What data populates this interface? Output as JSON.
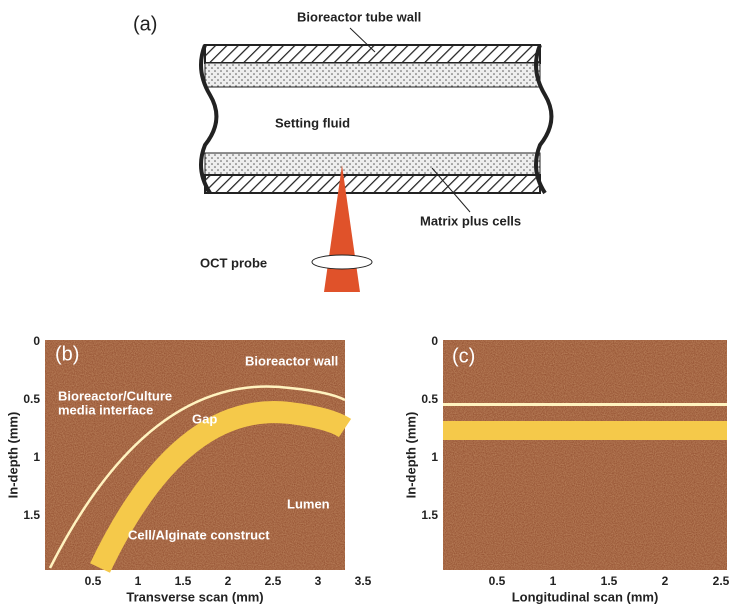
{
  "panel_a": {
    "label": "(a)",
    "tube_wall": "Bioreactor tube wall",
    "fluid": "Setting fluid",
    "matrix": "Matrix plus cells",
    "probe": "OCT probe"
  },
  "panel_b": {
    "label": "(b)",
    "x_axis": "Transverse scan (mm)",
    "y_axis": "In-depth (mm)",
    "xticks": [
      "0.5",
      "1",
      "1.5",
      "2",
      "2.5",
      "3",
      "3.5"
    ],
    "yticks": [
      "0",
      "0.5",
      "1",
      "1.5"
    ],
    "annotations": [
      "Bioreactor wall",
      "Bioreactor/Culture",
      "media interface",
      "Gap",
      "Lumen",
      "Cell/Alginate construct"
    ]
  },
  "panel_c": {
    "label": "(c)",
    "x_axis": "Longitudinal scan (mm)",
    "y_axis": "In-depth (mm)",
    "xticks": [
      "0.5",
      "1",
      "1.5",
      "2",
      "2.5"
    ],
    "yticks": [
      "0",
      "0.5",
      "1",
      "1.5"
    ]
  }
}
